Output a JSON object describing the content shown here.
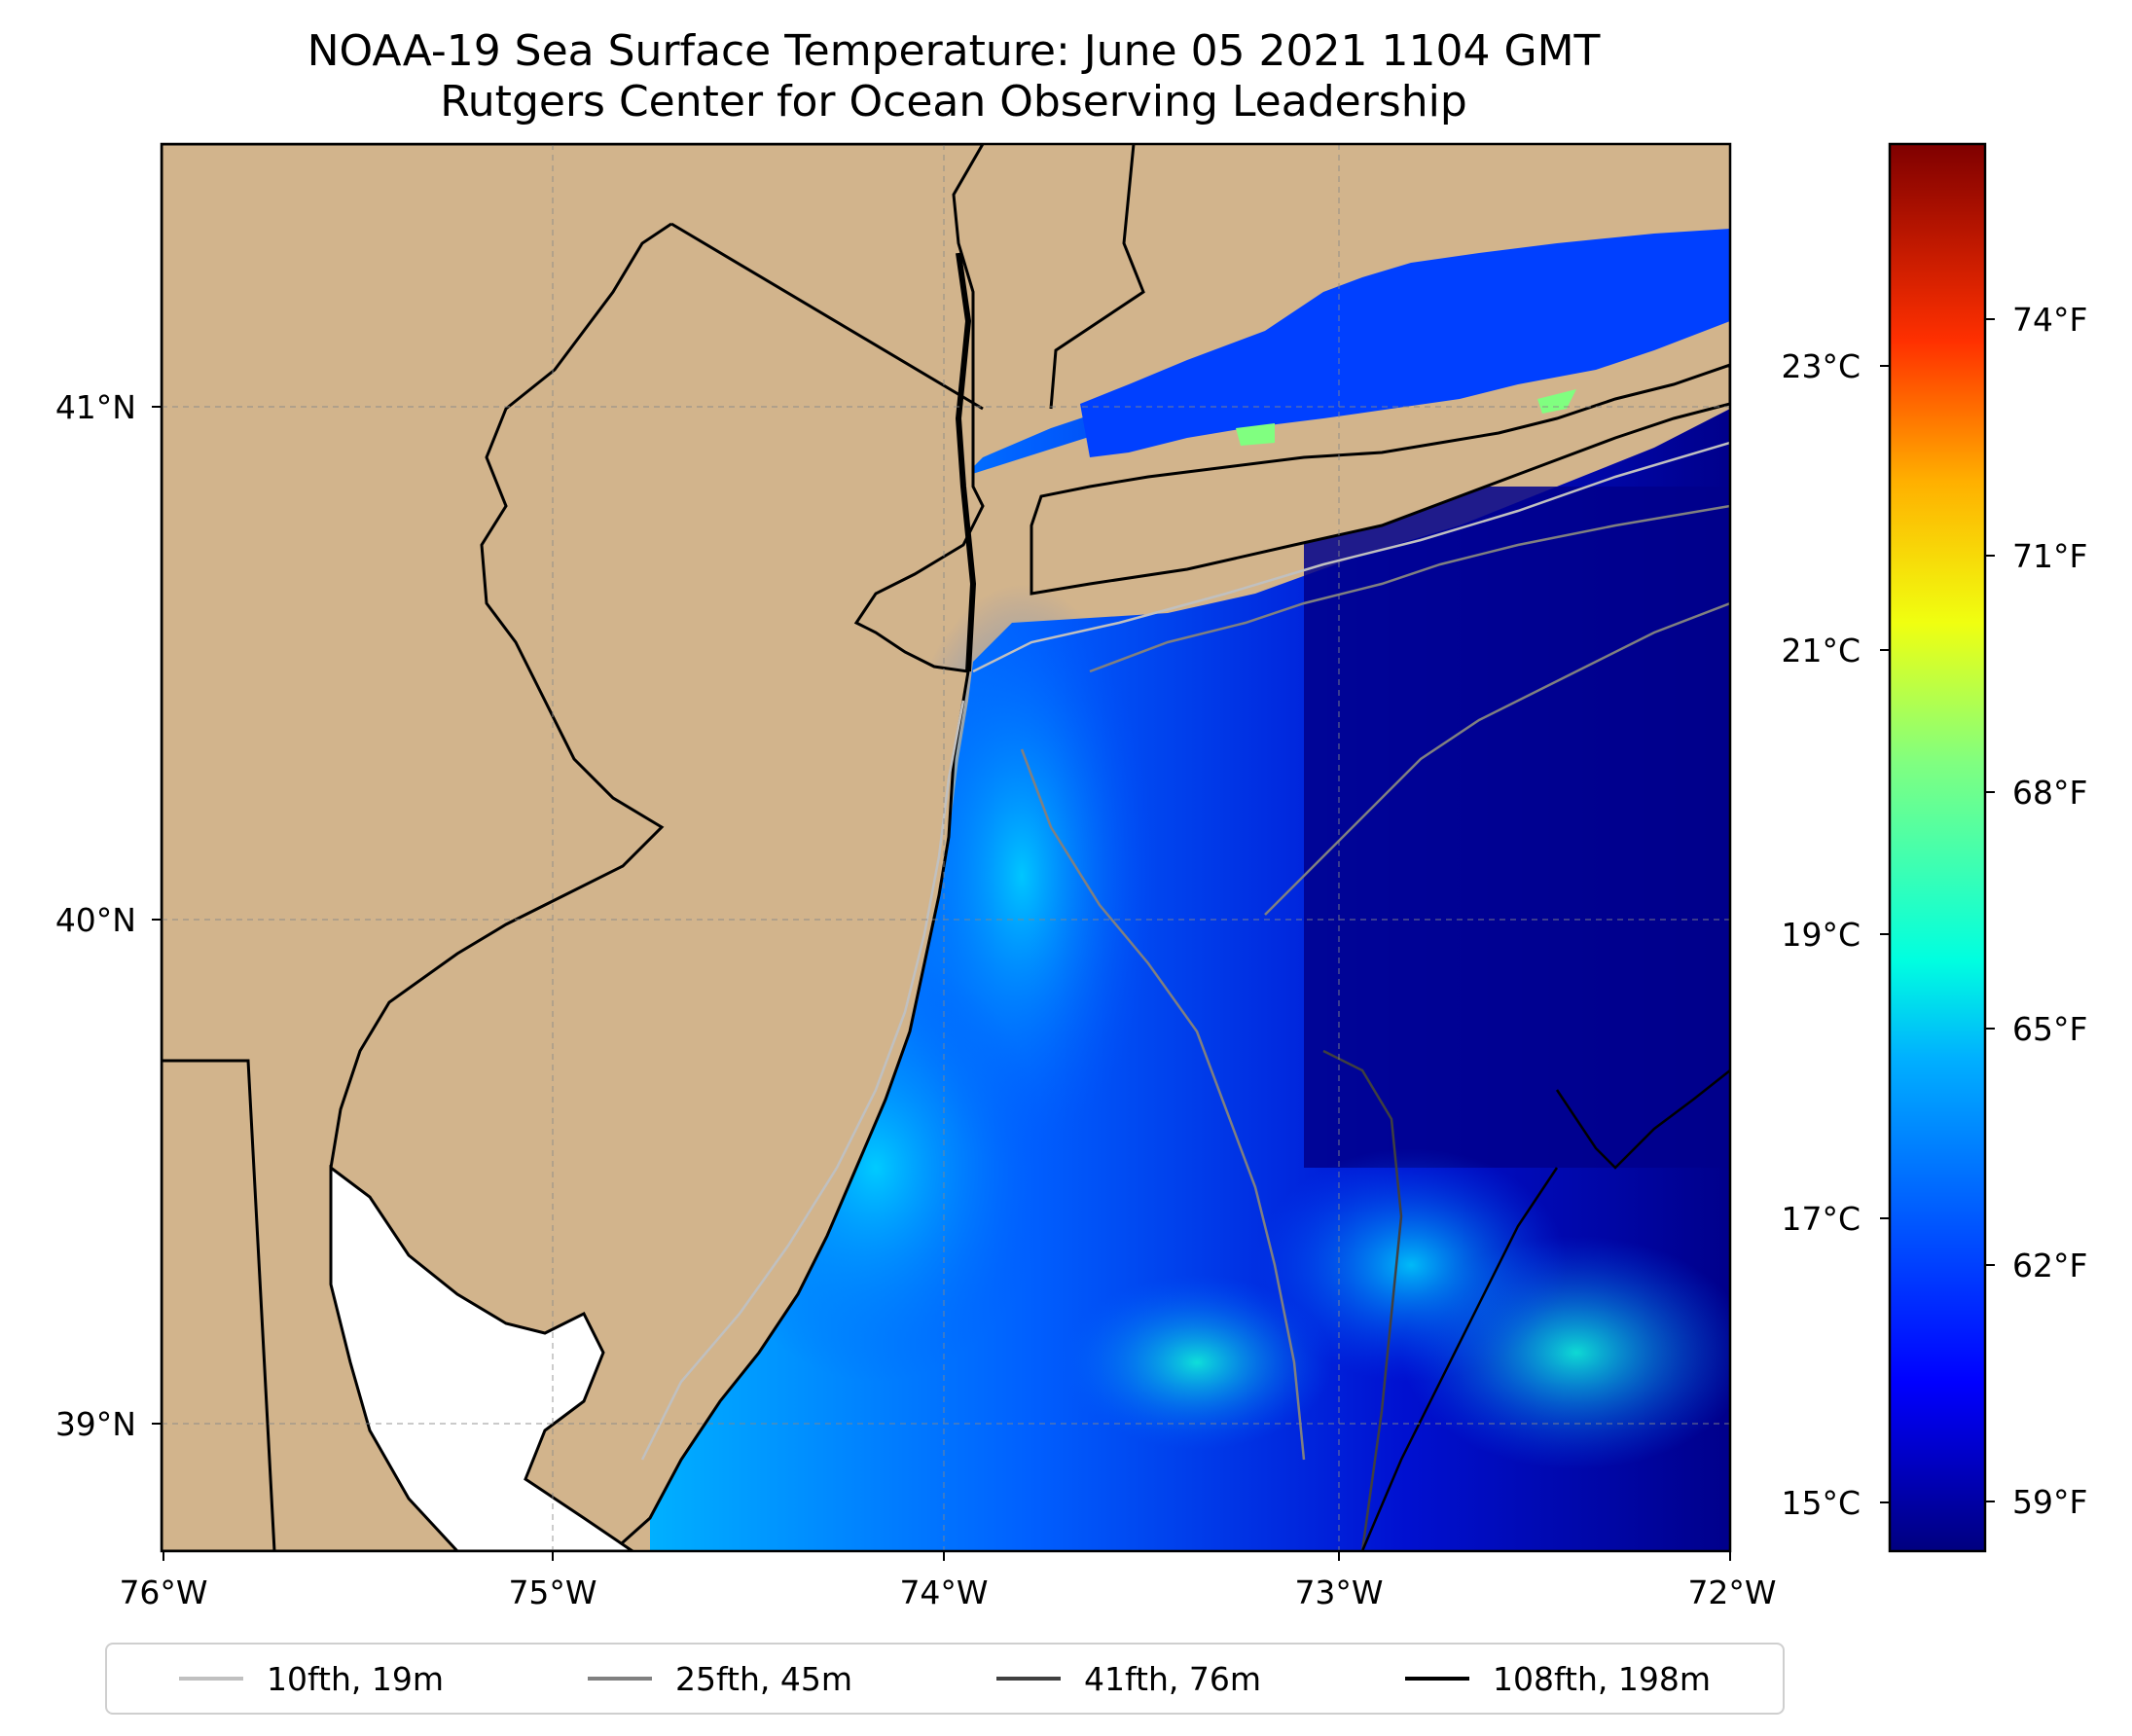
{
  "title": {
    "line1": "NOAA-19 Sea Surface Temperature: June 05 2021 1104 GMT",
    "line2": "Rutgers Center for Ocean Observing Leadership"
  },
  "axes": {
    "x_ticks": [
      "76°W",
      "75°W",
      "74°W",
      "73°W",
      "72°W"
    ],
    "y_ticks": [
      "41°N",
      "40°N",
      "39°N"
    ]
  },
  "colorbar": {
    "celsius_ticks": [
      "23°C",
      "21°C",
      "19°C",
      "17°C",
      "15°C"
    ],
    "fahrenheit_ticks": [
      "74°F",
      "71°F",
      "68°F",
      "65°F",
      "62°F",
      "59°F"
    ],
    "colormap": "jet"
  },
  "legend": {
    "items": [
      {
        "label": "10fth, 19m",
        "color": "#c0c0c0"
      },
      {
        "label": "25fth, 45m",
        "color": "#808080"
      },
      {
        "label": "41fth, 76m",
        "color": "#404040"
      },
      {
        "label": "108fth, 198m",
        "color": "#000000"
      }
    ]
  },
  "colors": {
    "land": "#d2b48c",
    "ocean_cold": "#00008b",
    "ocean_mid": "#0030ff",
    "ocean_warm": "#00c8ff",
    "no_data": "#ffffff"
  }
}
